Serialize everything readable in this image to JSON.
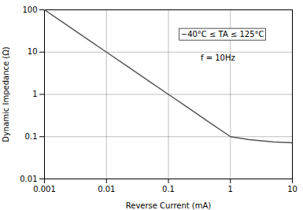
{
  "chart_data": {
    "type": "line",
    "title": "",
    "xlabel": "Reverse Current (mA)",
    "ylabel": "Dynamic Impedance (Ω)",
    "x": [
      0.001,
      0.002,
      0.005,
      0.01,
      0.02,
      0.05,
      0.1,
      0.2,
      0.5,
      1.0,
      2.0,
      5.0,
      10.0
    ],
    "values": [
      100,
      50,
      20,
      10,
      5.0,
      2.0,
      1.0,
      0.5,
      0.2,
      0.1,
      0.085,
      0.075,
      0.072
    ],
    "color": "#555555",
    "log": true,
    "xlim": [
      0.001,
      10
    ],
    "ylim": [
      0.01,
      100
    ],
    "xticks": [
      0.001,
      0.01,
      0.1,
      1,
      10
    ],
    "yticks": [
      0.01,
      0.1,
      1,
      10,
      100
    ],
    "grid": true,
    "annotations": [
      "−40°C ≤ TA ≤ 125°C",
      "f = 10Hz"
    ]
  }
}
